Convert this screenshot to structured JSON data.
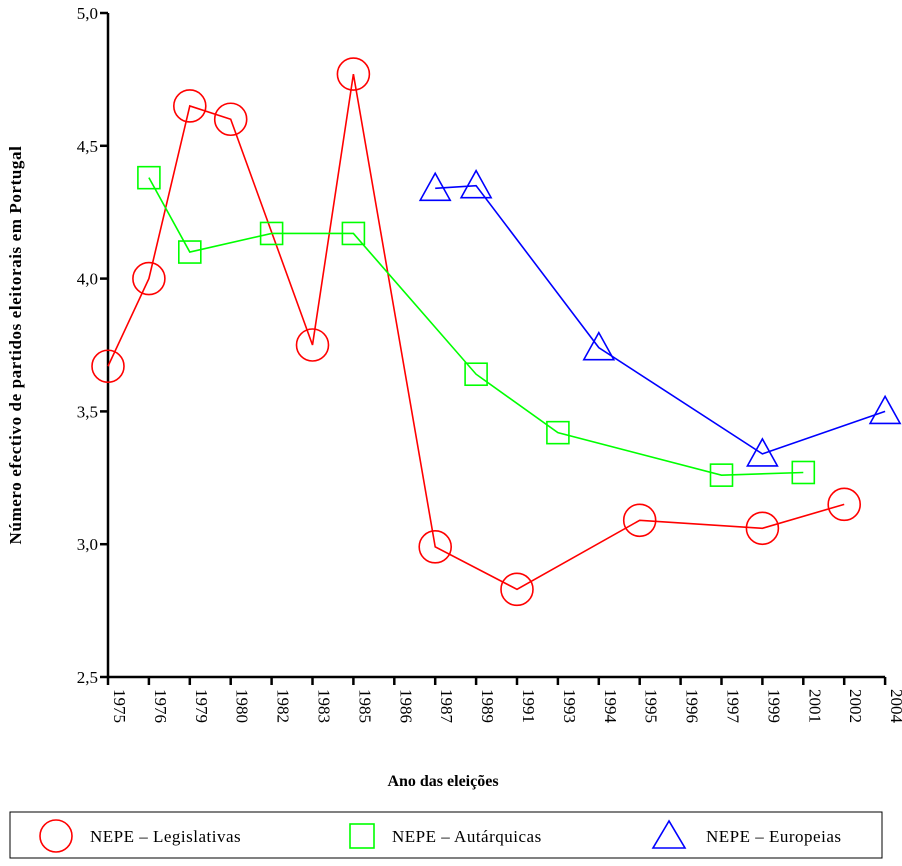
{
  "chart_data": {
    "type": "line",
    "xlabel": "Ano das eleições",
    "ylabel": "Número efectivo de partidos eleitorais em Portugal",
    "categories": [
      "1975",
      "1976",
      "1979",
      "1980",
      "1982",
      "1983",
      "1985",
      "1986",
      "1987",
      "1989",
      "1991",
      "1993",
      "1994",
      "1995",
      "1996",
      "1997",
      "1999",
      "2001",
      "2002",
      "2004"
    ],
    "y_ticks": [
      "2,5",
      "3,0",
      "3,5",
      "4,0",
      "4,5",
      "5,0"
    ],
    "y_tick_values": [
      2.5,
      3.0,
      3.5,
      4.0,
      4.5,
      5.0
    ],
    "ylim": [
      2.5,
      5.0
    ],
    "grid": false,
    "legend_position": "bottom",
    "series": [
      {
        "name": "NEPE – Legislativas",
        "color": "#ff0000",
        "marker": "circle",
        "points": [
          {
            "x": "1975",
            "y": 3.67
          },
          {
            "x": "1976",
            "y": 4.0
          },
          {
            "x": "1979",
            "y": 4.65
          },
          {
            "x": "1980",
            "y": 4.6
          },
          {
            "x": "1983",
            "y": 3.75
          },
          {
            "x": "1985",
            "y": 4.77
          },
          {
            "x": "1987",
            "y": 2.99
          },
          {
            "x": "1991",
            "y": 2.83
          },
          {
            "x": "1995",
            "y": 3.09
          },
          {
            "x": "1999",
            "y": 3.06
          },
          {
            "x": "2002",
            "y": 3.15
          }
        ]
      },
      {
        "name": "NEPE – Autárquicas",
        "color": "#00ff00",
        "marker": "square",
        "points": [
          {
            "x": "1976",
            "y": 4.38
          },
          {
            "x": "1979",
            "y": 4.1
          },
          {
            "x": "1982",
            "y": 4.17
          },
          {
            "x": "1985",
            "y": 4.17
          },
          {
            "x": "1989",
            "y": 3.64
          },
          {
            "x": "1993",
            "y": 3.42
          },
          {
            "x": "1997",
            "y": 3.26
          },
          {
            "x": "2001",
            "y": 3.27
          }
        ]
      },
      {
        "name": "NEPE – Europeias",
        "color": "#0000ff",
        "marker": "triangle",
        "points": [
          {
            "x": "1987",
            "y": 4.34
          },
          {
            "x": "1989",
            "y": 4.35
          },
          {
            "x": "1994",
            "y": 3.74
          },
          {
            "x": "1999",
            "y": 3.34
          },
          {
            "x": "2004",
            "y": 3.5
          }
        ]
      }
    ]
  }
}
